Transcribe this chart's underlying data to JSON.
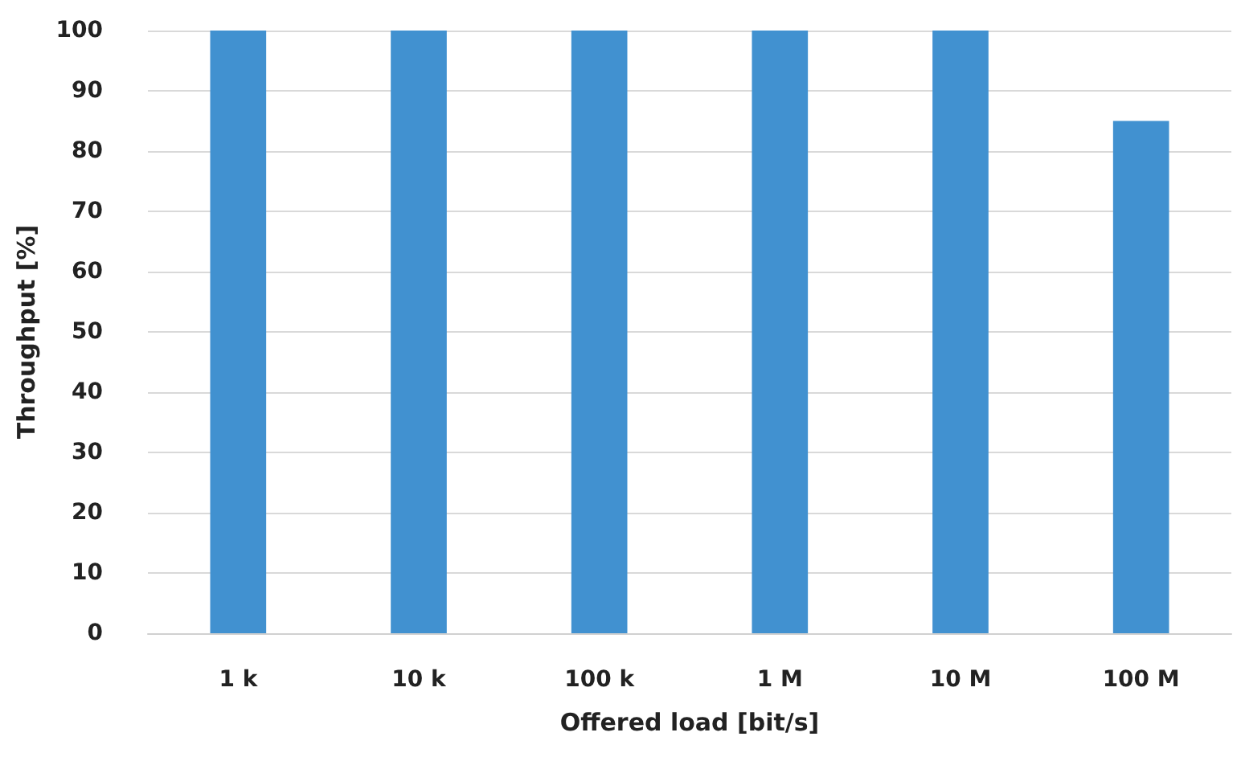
{
  "chart_data": {
    "type": "bar",
    "categories": [
      "1 k",
      "10 k",
      "100 k",
      "1 M",
      "10 M",
      "100 M"
    ],
    "values": [
      100,
      100,
      100,
      100,
      100,
      85
    ],
    "color": "#4191d0",
    "xlabel": "Offered load [bit/s]",
    "ylabel": "Throughput [%]",
    "ylim": [
      0,
      100
    ],
    "yticks": [
      0,
      10,
      20,
      30,
      40,
      50,
      60,
      70,
      80,
      90,
      100
    ],
    "grid": "y"
  }
}
